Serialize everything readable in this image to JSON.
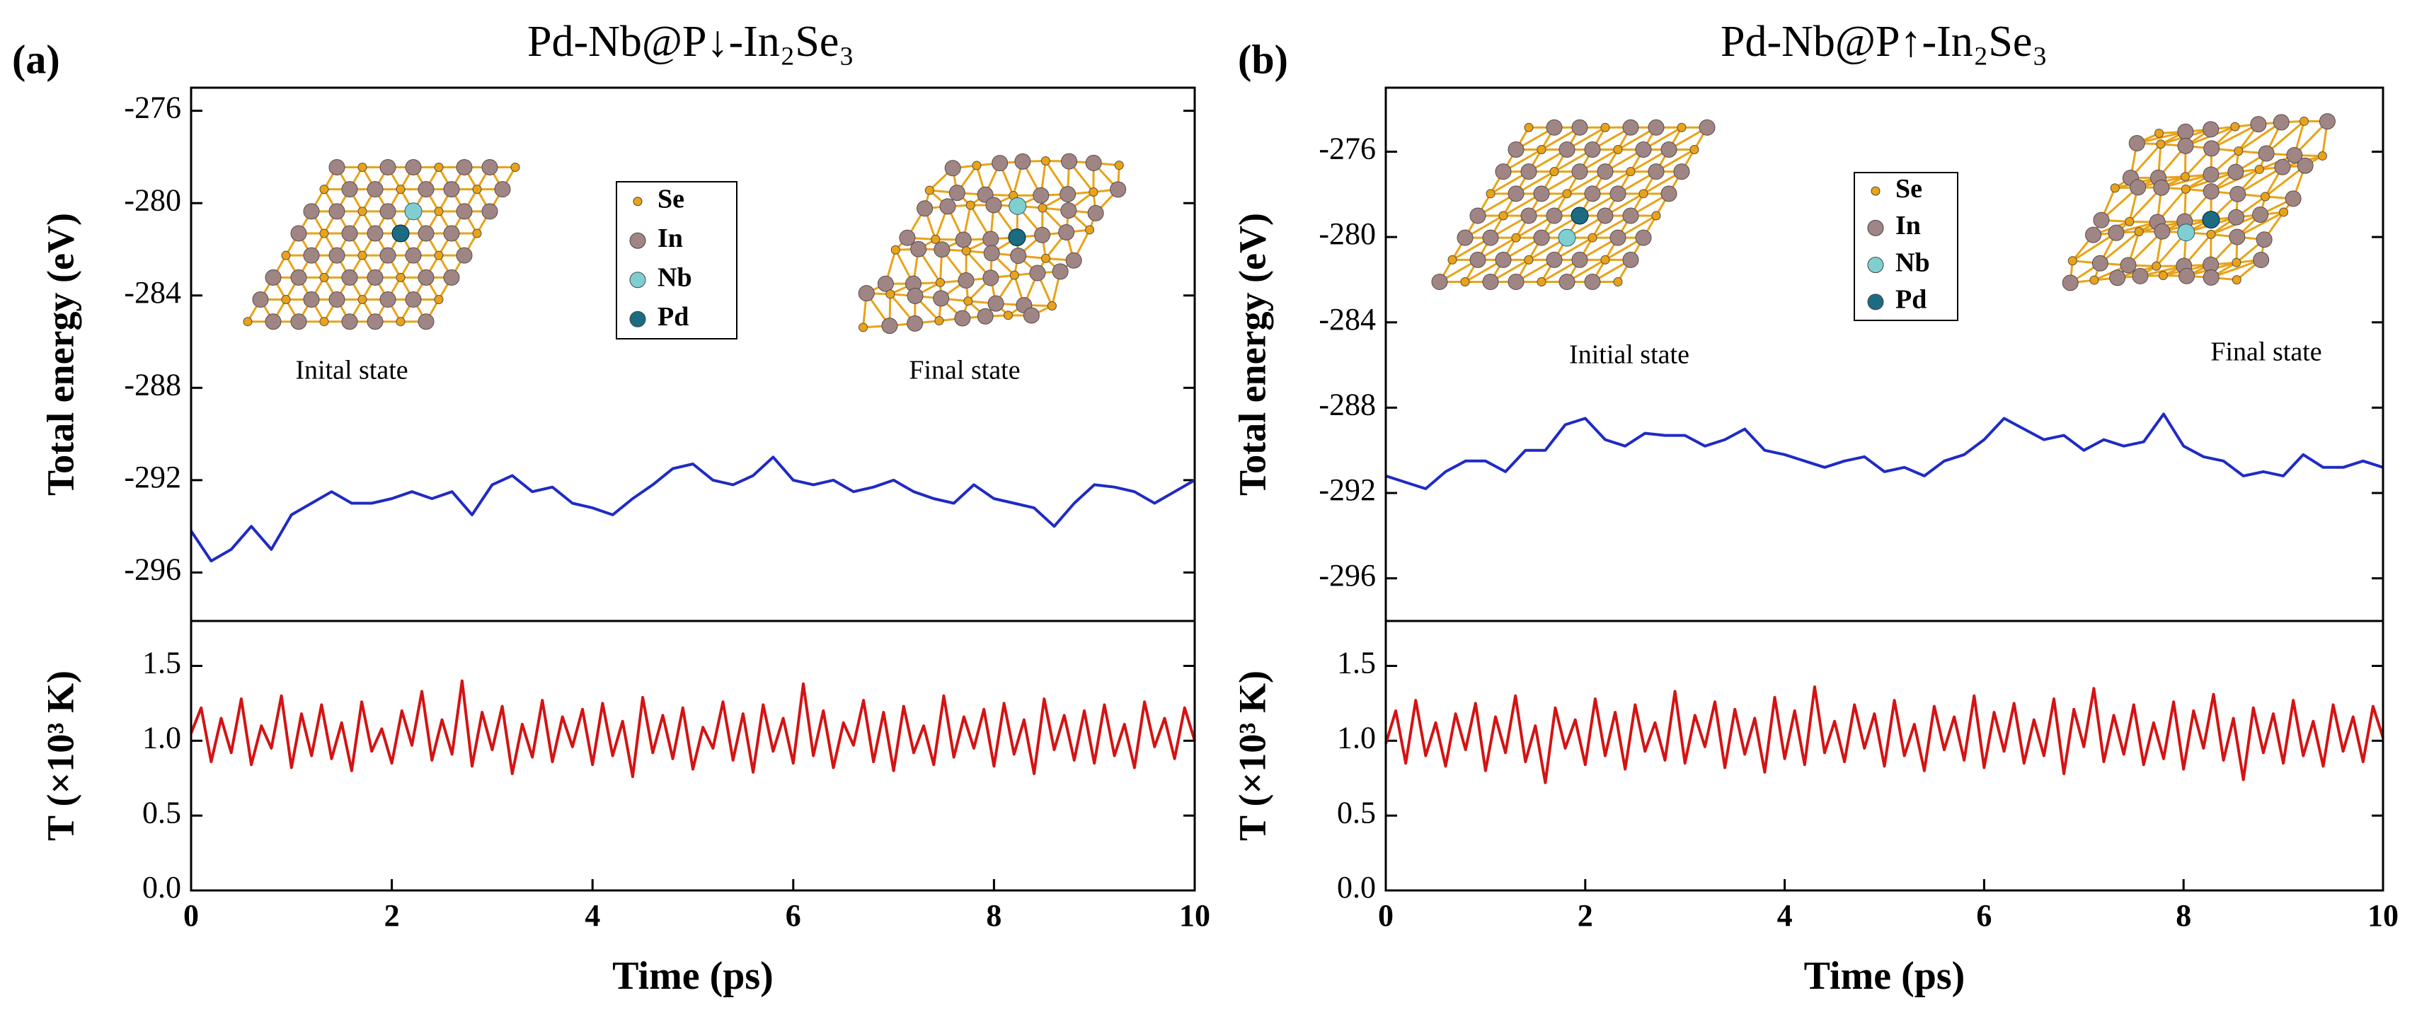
{
  "chart_data": [
    {
      "type": "line",
      "panel_label": "(a)",
      "title": "Pd-Nb@P↓-In₂Se₃",
      "ylabel": "Total energy (eV)",
      "xlim": [
        0,
        10
      ],
      "ylim": [
        -298.1,
        -275
      ],
      "yticks": [
        -276,
        -280,
        -284,
        -288,
        -292,
        -296
      ],
      "color": "#1f2bc4",
      "x": [
        0,
        0.2,
        0.4,
        0.6,
        0.8,
        1,
        1.2,
        1.4,
        1.6,
        1.8,
        2,
        2.2,
        2.4,
        2.6,
        2.8,
        3,
        3.2,
        3.4,
        3.6,
        3.8,
        4,
        4.2,
        4.4,
        4.6,
        4.8,
        5,
        5.2,
        5.4,
        5.6,
        5.8,
        6,
        6.2,
        6.4,
        6.6,
        6.8,
        7,
        7.2,
        7.4,
        7.6,
        7.8,
        8,
        8.2,
        8.4,
        8.6,
        8.8,
        9,
        9.2,
        9.4,
        9.6,
        9.8,
        10
      ],
      "values": [
        -294.2,
        -295.5,
        -295,
        -294,
        -295,
        -293.5,
        -293,
        -292.5,
        -293,
        -293,
        -292.8,
        -292.5,
        -292.8,
        -292.5,
        -293.5,
        -292.2,
        -291.8,
        -292.5,
        -292.3,
        -293,
        -293.2,
        -293.5,
        -292.8,
        -292.2,
        -291.5,
        -291.3,
        -292,
        -292.2,
        -291.8,
        -291,
        -292,
        -292.2,
        -292,
        -292.5,
        -292.3,
        -292,
        -292.5,
        -292.8,
        -293,
        -292.2,
        -292.8,
        -293,
        -293.2,
        -294,
        -293,
        -292.2,
        -292.3,
        -292.5,
        -293,
        -292.5,
        -292
      ],
      "atoms": [
        {
          "name": "Se",
          "color": "#e8a317"
        },
        {
          "name": "In",
          "color": "#a08585"
        },
        {
          "name": "Nb",
          "color": "#7fcfd0"
        },
        {
          "name": "Pd",
          "color": "#1b6b82"
        }
      ],
      "annotations": [
        "Inital state",
        "Final state"
      ]
    },
    {
      "type": "line",
      "ylabel": "T (×10³ K)",
      "xlabel": "Time (ps)",
      "xlim": [
        0,
        10
      ],
      "xticks": [
        0,
        2,
        4,
        6,
        8,
        10
      ],
      "ylim": [
        0,
        1.8
      ],
      "yticks": [
        {
          "value": 0,
          "label": "0.0"
        },
        0.5,
        {
          "value": 1,
          "label": "1.0"
        },
        1.5
      ],
      "color": "#d41313",
      "x": [
        0,
        0.1,
        0.2,
        0.3,
        0.4,
        0.5,
        0.6,
        0.7,
        0.8,
        0.9,
        1,
        1.1,
        1.2,
        1.3,
        1.4,
        1.5,
        1.6,
        1.7,
        1.8,
        1.9,
        2,
        2.1,
        2.2,
        2.3,
        2.4,
        2.5,
        2.6,
        2.7,
        2.8,
        2.9,
        3,
        3.1,
        3.2,
        3.3,
        3.4,
        3.5,
        3.6,
        3.7,
        3.8,
        3.9,
        4,
        4.1,
        4.2,
        4.3,
        4.4,
        4.5,
        4.6,
        4.7,
        4.8,
        4.9,
        5,
        5.1,
        5.2,
        5.3,
        5.4,
        5.5,
        5.6,
        5.7,
        5.8,
        5.9,
        6,
        6.1,
        6.2,
        6.3,
        6.4,
        6.5,
        6.6,
        6.7,
        6.8,
        6.9,
        7,
        7.1,
        7.2,
        7.3,
        7.4,
        7.5,
        7.6,
        7.7,
        7.8,
        7.9,
        8,
        8.1,
        8.2,
        8.3,
        8.4,
        8.5,
        8.6,
        8.7,
        8.8,
        8.9,
        9,
        9.1,
        9.2,
        9.3,
        9.4,
        9.5,
        9.6,
        9.7,
        9.8,
        9.9,
        10
      ],
      "values": [
        1.05,
        1.22,
        0.86,
        1.15,
        0.92,
        1.28,
        0.84,
        1.1,
        0.95,
        1.3,
        0.82,
        1.18,
        0.9,
        1.24,
        0.88,
        1.12,
        0.8,
        1.26,
        0.93,
        1.08,
        0.85,
        1.2,
        0.97,
        1.33,
        0.87,
        1.14,
        0.91,
        1.4,
        0.83,
        1.19,
        0.94,
        1.23,
        0.78,
        1.11,
        0.89,
        1.27,
        0.86,
        1.16,
        0.96,
        1.21,
        0.84,
        1.25,
        0.9,
        1.13,
        0.76,
        1.29,
        0.92,
        1.17,
        0.88,
        1.22,
        0.81,
        1.09,
        0.95,
        1.26,
        0.87,
        1.18,
        0.79,
        1.24,
        0.93,
        1.15,
        0.85,
        1.38,
        0.9,
        1.2,
        0.82,
        1.12,
        0.97,
        1.27,
        0.86,
        1.19,
        0.8,
        1.23,
        0.92,
        1.1,
        0.84,
        1.3,
        0.89,
        1.16,
        0.95,
        1.21,
        0.83,
        1.25,
        0.91,
        1.14,
        0.78,
        1.28,
        0.94,
        1.17,
        0.87,
        1.2,
        0.85,
        1.24,
        0.9,
        1.11,
        0.82,
        1.26,
        0.96,
        1.15,
        0.88,
        1.22,
        1.0
      ]
    },
    {
      "type": "line",
      "panel_label": "(b)",
      "title": "Pd-Nb@P↑-In₂Se₃",
      "ylabel": "Total energy (eV)",
      "xlim": [
        0,
        10
      ],
      "ylim": [
        -298,
        -273
      ],
      "yticks": [
        -276,
        -280,
        -284,
        -288,
        -292,
        -296
      ],
      "color": "#1f2bc4",
      "x": [
        0,
        0.2,
        0.4,
        0.6,
        0.8,
        1,
        1.2,
        1.4,
        1.6,
        1.8,
        2,
        2.2,
        2.4,
        2.6,
        2.8,
        3,
        3.2,
        3.4,
        3.6,
        3.8,
        4,
        4.2,
        4.4,
        4.6,
        4.8,
        5,
        5.2,
        5.4,
        5.6,
        5.8,
        6,
        6.2,
        6.4,
        6.6,
        6.8,
        7,
        7.2,
        7.4,
        7.6,
        7.8,
        8,
        8.2,
        8.4,
        8.6,
        8.8,
        9,
        9.2,
        9.4,
        9.6,
        9.8,
        10
      ],
      "values": [
        -291.2,
        -291.5,
        -291.8,
        -291,
        -290.5,
        -290.5,
        -291,
        -290,
        -290,
        -288.8,
        -288.5,
        -289.5,
        -289.8,
        -289.2,
        -289.3,
        -289.3,
        -289.8,
        -289.5,
        -289,
        -290,
        -290.2,
        -290.5,
        -290.8,
        -290.5,
        -290.3,
        -291,
        -290.8,
        -291.2,
        -290.5,
        -290.2,
        -289.5,
        -288.5,
        -289,
        -289.5,
        -289.3,
        -290,
        -289.5,
        -289.8,
        -289.6,
        -288.3,
        -289.8,
        -290.3,
        -290.5,
        -291.2,
        -291,
        -291.2,
        -290.2,
        -290.8,
        -290.8,
        -290.5,
        -290.8
      ],
      "atoms": [
        {
          "name": "Se",
          "color": "#e8a317"
        },
        {
          "name": "In",
          "color": "#a08585"
        },
        {
          "name": "Nb",
          "color": "#7fcfd0"
        },
        {
          "name": "Pd",
          "color": "#1b6b82"
        }
      ],
      "annotations": [
        "Initial state",
        "Final state"
      ]
    },
    {
      "type": "line",
      "ylabel": "T (×10³ K)",
      "xlabel": "Time (ps)",
      "xlim": [
        0,
        10
      ],
      "xticks": [
        0,
        2,
        4,
        6,
        8,
        10
      ],
      "ylim": [
        0,
        1.8
      ],
      "yticks": [
        {
          "value": 0,
          "label": "0.0"
        },
        0.5,
        {
          "value": 1,
          "label": "1.0"
        },
        1.5
      ],
      "color": "#d41313",
      "x": [
        0,
        0.1,
        0.2,
        0.3,
        0.4,
        0.5,
        0.6,
        0.7,
        0.8,
        0.9,
        1,
        1.1,
        1.2,
        1.3,
        1.4,
        1.5,
        1.6,
        1.7,
        1.8,
        1.9,
        2,
        2.1,
        2.2,
        2.3,
        2.4,
        2.5,
        2.6,
        2.7,
        2.8,
        2.9,
        3,
        3.1,
        3.2,
        3.3,
        3.4,
        3.5,
        3.6,
        3.7,
        3.8,
        3.9,
        4,
        4.1,
        4.2,
        4.3,
        4.4,
        4.5,
        4.6,
        4.7,
        4.8,
        4.9,
        5,
        5.1,
        5.2,
        5.3,
        5.4,
        5.5,
        5.6,
        5.7,
        5.8,
        5.9,
        6,
        6.1,
        6.2,
        6.3,
        6.4,
        6.5,
        6.6,
        6.7,
        6.8,
        6.9,
        7,
        7.1,
        7.2,
        7.3,
        7.4,
        7.5,
        7.6,
        7.7,
        7.8,
        7.9,
        8,
        8.1,
        8.2,
        8.3,
        8.4,
        8.5,
        8.6,
        8.7,
        8.8,
        8.9,
        9,
        9.1,
        9.2,
        9.3,
        9.4,
        9.5,
        9.6,
        9.7,
        9.8,
        9.9,
        10
      ],
      "values": [
        0.98,
        1.2,
        0.85,
        1.27,
        0.9,
        1.12,
        0.83,
        1.18,
        0.94,
        1.25,
        0.8,
        1.16,
        0.92,
        1.3,
        0.86,
        1.1,
        0.72,
        1.22,
        0.95,
        1.14,
        0.84,
        1.28,
        0.9,
        1.19,
        0.81,
        1.24,
        0.93,
        1.12,
        0.87,
        1.33,
        0.85,
        1.17,
        0.96,
        1.26,
        0.82,
        1.21,
        0.91,
        1.15,
        0.79,
        1.29,
        0.88,
        1.2,
        0.84,
        1.36,
        0.92,
        1.13,
        0.86,
        1.24,
        0.95,
        1.18,
        0.83,
        1.27,
        0.9,
        1.11,
        0.8,
        1.23,
        0.94,
        1.16,
        0.87,
        1.3,
        0.82,
        1.19,
        0.93,
        1.25,
        0.85,
        1.14,
        0.9,
        1.28,
        0.78,
        1.21,
        0.96,
        1.35,
        0.86,
        1.17,
        0.91,
        1.24,
        0.84,
        1.12,
        0.88,
        1.26,
        0.81,
        1.2,
        0.95,
        1.31,
        0.87,
        1.15,
        0.74,
        1.22,
        0.92,
        1.18,
        0.85,
        1.27,
        0.9,
        1.13,
        0.83,
        1.24,
        0.93,
        1.16,
        0.86,
        1.23,
        1.02
      ]
    }
  ]
}
